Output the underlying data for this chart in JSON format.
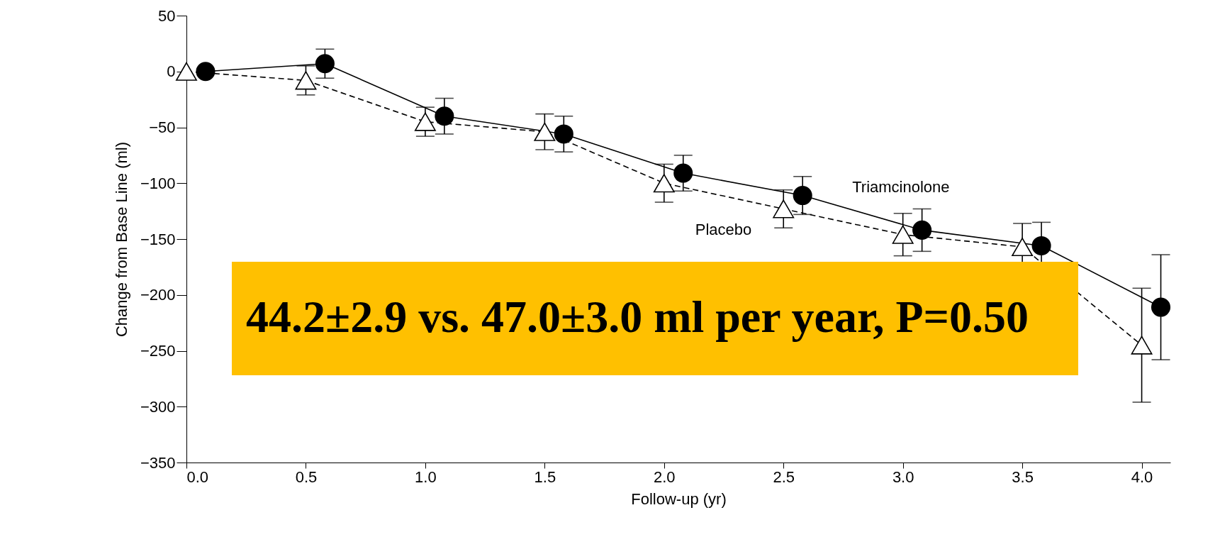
{
  "chart_data": {
    "type": "line",
    "xlabel": "Follow-up (yr)",
    "ylabel": "Change from Base Line (ml)",
    "xlim": [
      0,
      4.12
    ],
    "ylim": [
      -350,
      50
    ],
    "xticks": [
      {
        "value": 0,
        "label": "0.0"
      },
      {
        "value": 0.5,
        "label": "0.5"
      },
      {
        "value": 1,
        "label": "1.0"
      },
      {
        "value": 1.5,
        "label": "1.5"
      },
      {
        "value": 2,
        "label": "2.0"
      },
      {
        "value": 2.5,
        "label": "2.5"
      },
      {
        "value": 3,
        "label": "3.0"
      },
      {
        "value": 3.5,
        "label": "3.5"
      },
      {
        "value": 4,
        "label": "4.0"
      }
    ],
    "yticks": [
      50,
      0,
      -50,
      -100,
      -150,
      -200,
      -250,
      -300,
      -350
    ],
    "grid": false,
    "series": [
      {
        "name": "Triamcinolone",
        "color": "#000000",
        "marker": "circle",
        "line_style": "solid",
        "x": [
          0.08,
          0.58,
          1.08,
          1.58,
          2.08,
          2.58,
          3.08,
          3.58,
          4.08
        ],
        "values": [
          0,
          7,
          -40,
          -56,
          -91,
          -111,
          -142,
          -156,
          -211
        ],
        "errors": [
          null,
          13,
          16,
          16,
          16,
          17,
          19,
          21,
          47
        ]
      },
      {
        "name": "Placebo",
        "color": "#000000",
        "marker": "triangle",
        "line_style": "dashed",
        "x": [
          0,
          0.5,
          1,
          1.5,
          2,
          2.5,
          3,
          3.5,
          4
        ],
        "values": [
          0,
          -8,
          -45,
          -54,
          -100,
          -123,
          -146,
          -157,
          -245
        ],
        "errors": [
          null,
          13,
          13,
          16,
          17,
          17,
          19,
          21,
          51
        ]
      }
    ],
    "annotations": [
      "44.2±2.9 vs. 47.0±3.0 ml per year, P=0.50"
    ]
  }
}
